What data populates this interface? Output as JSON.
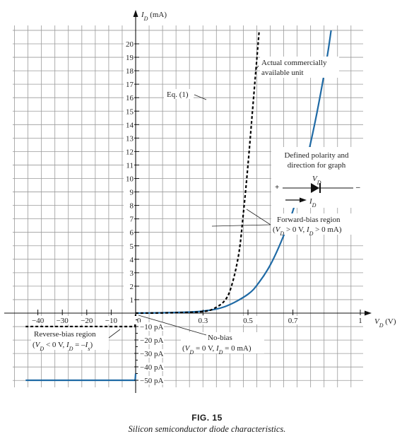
{
  "chart_data": {
    "type": "line",
    "title": "",
    "ylabel": "I_D (mA)",
    "xlabel": "V_D (V)",
    "grid": true,
    "forward_axis": {
      "x_unit": "V",
      "y_unit": "mA",
      "xlim": [
        0,
        1.0
      ],
      "ylim": [
        0,
        20
      ],
      "x_ticks": [
        "0",
        "0.3",
        "0.5",
        "0.7",
        "1"
      ],
      "x_tick_values": [
        0,
        0.3,
        0.5,
        0.7,
        1.0
      ],
      "y_ticks": [
        1,
        2,
        3,
        4,
        5,
        6,
        7,
        8,
        9,
        10,
        11,
        12,
        13,
        14,
        15,
        16,
        17,
        18,
        19,
        20
      ]
    },
    "reverse_axis": {
      "x_unit": "V",
      "y_unit": "pA",
      "xlim": [
        -45,
        0
      ],
      "ylim": [
        -50,
        0
      ],
      "x_ticks": [
        "-40",
        "-30",
        "-20",
        "-10"
      ],
      "x_tick_values": [
        -40,
        -30,
        -20,
        -10
      ],
      "y_ticks": [
        "10 pA",
        "20 pA",
        "30 pA",
        "40 pA",
        "50 pA"
      ],
      "y_tick_values": [
        -10,
        -20,
        -30,
        -40,
        -50
      ]
    },
    "series": [
      {
        "name": "Actual commercially available unit",
        "style": "solid",
        "color": "#1f6aa5",
        "forward_points": [
          [
            0,
            0
          ],
          [
            0.1,
            0.02
          ],
          [
            0.2,
            0.06
          ],
          [
            0.3,
            0.15
          ],
          [
            0.4,
            0.5
          ],
          [
            0.5,
            1.4
          ],
          [
            0.55,
            2.3
          ],
          [
            0.6,
            3.6
          ],
          [
            0.65,
            5.4
          ],
          [
            0.7,
            7.6
          ],
          [
            0.75,
            10.6
          ],
          [
            0.8,
            14.3
          ],
          [
            0.85,
            18.8
          ],
          [
            0.87,
            21.0
          ]
        ],
        "reverse_points": [
          [
            0,
            -45
          ],
          [
            -0.2,
            -50
          ],
          [
            -45,
            -50
          ]
        ]
      },
      {
        "name": "Eq. (1)",
        "style": "dashed",
        "color": "#000000",
        "forward_points": [
          [
            0,
            0
          ],
          [
            0.1,
            0.01
          ],
          [
            0.2,
            0.04
          ],
          [
            0.3,
            0.12
          ],
          [
            0.35,
            0.35
          ],
          [
            0.4,
            1.0
          ],
          [
            0.43,
            2.2
          ],
          [
            0.46,
            4.5
          ],
          [
            0.48,
            7.5
          ],
          [
            0.5,
            11.0
          ],
          [
            0.52,
            15.0
          ],
          [
            0.54,
            19.0
          ],
          [
            0.55,
            21.0
          ]
        ],
        "reverse_points": [
          [
            0,
            -1
          ],
          [
            -0.3,
            -10
          ],
          [
            -45,
            -10
          ]
        ]
      }
    ],
    "annotations": {
      "actual_unit": "Actual commercially available unit",
      "actual_line1": "Actual commercially",
      "actual_line2": "available unit",
      "eq1": "Eq. (1)",
      "polarity_line1": "Defined polarity and",
      "polarity_line2": "direction for graph",
      "polarity_vd": "V",
      "polarity_vd_sub": "D",
      "polarity_plus": "+",
      "polarity_minus": "–",
      "polarity_id": "I",
      "polarity_id_sub": "D",
      "forward_line1": "Forward-bias region",
      "forward_line2": "(V_D > 0 V, I_D > 0 mA)",
      "reverse_line1": "Reverse-bias region",
      "reverse_line2": "(V_D < 0 V, I_D = –I_s)",
      "nobias_line1": "No-bias",
      "nobias_line2": "(V_D = 0 V, I_D = 0 mA)"
    }
  },
  "figure": {
    "number": "FIG. 15",
    "caption": "Silicon semiconductor diode characteristics."
  }
}
